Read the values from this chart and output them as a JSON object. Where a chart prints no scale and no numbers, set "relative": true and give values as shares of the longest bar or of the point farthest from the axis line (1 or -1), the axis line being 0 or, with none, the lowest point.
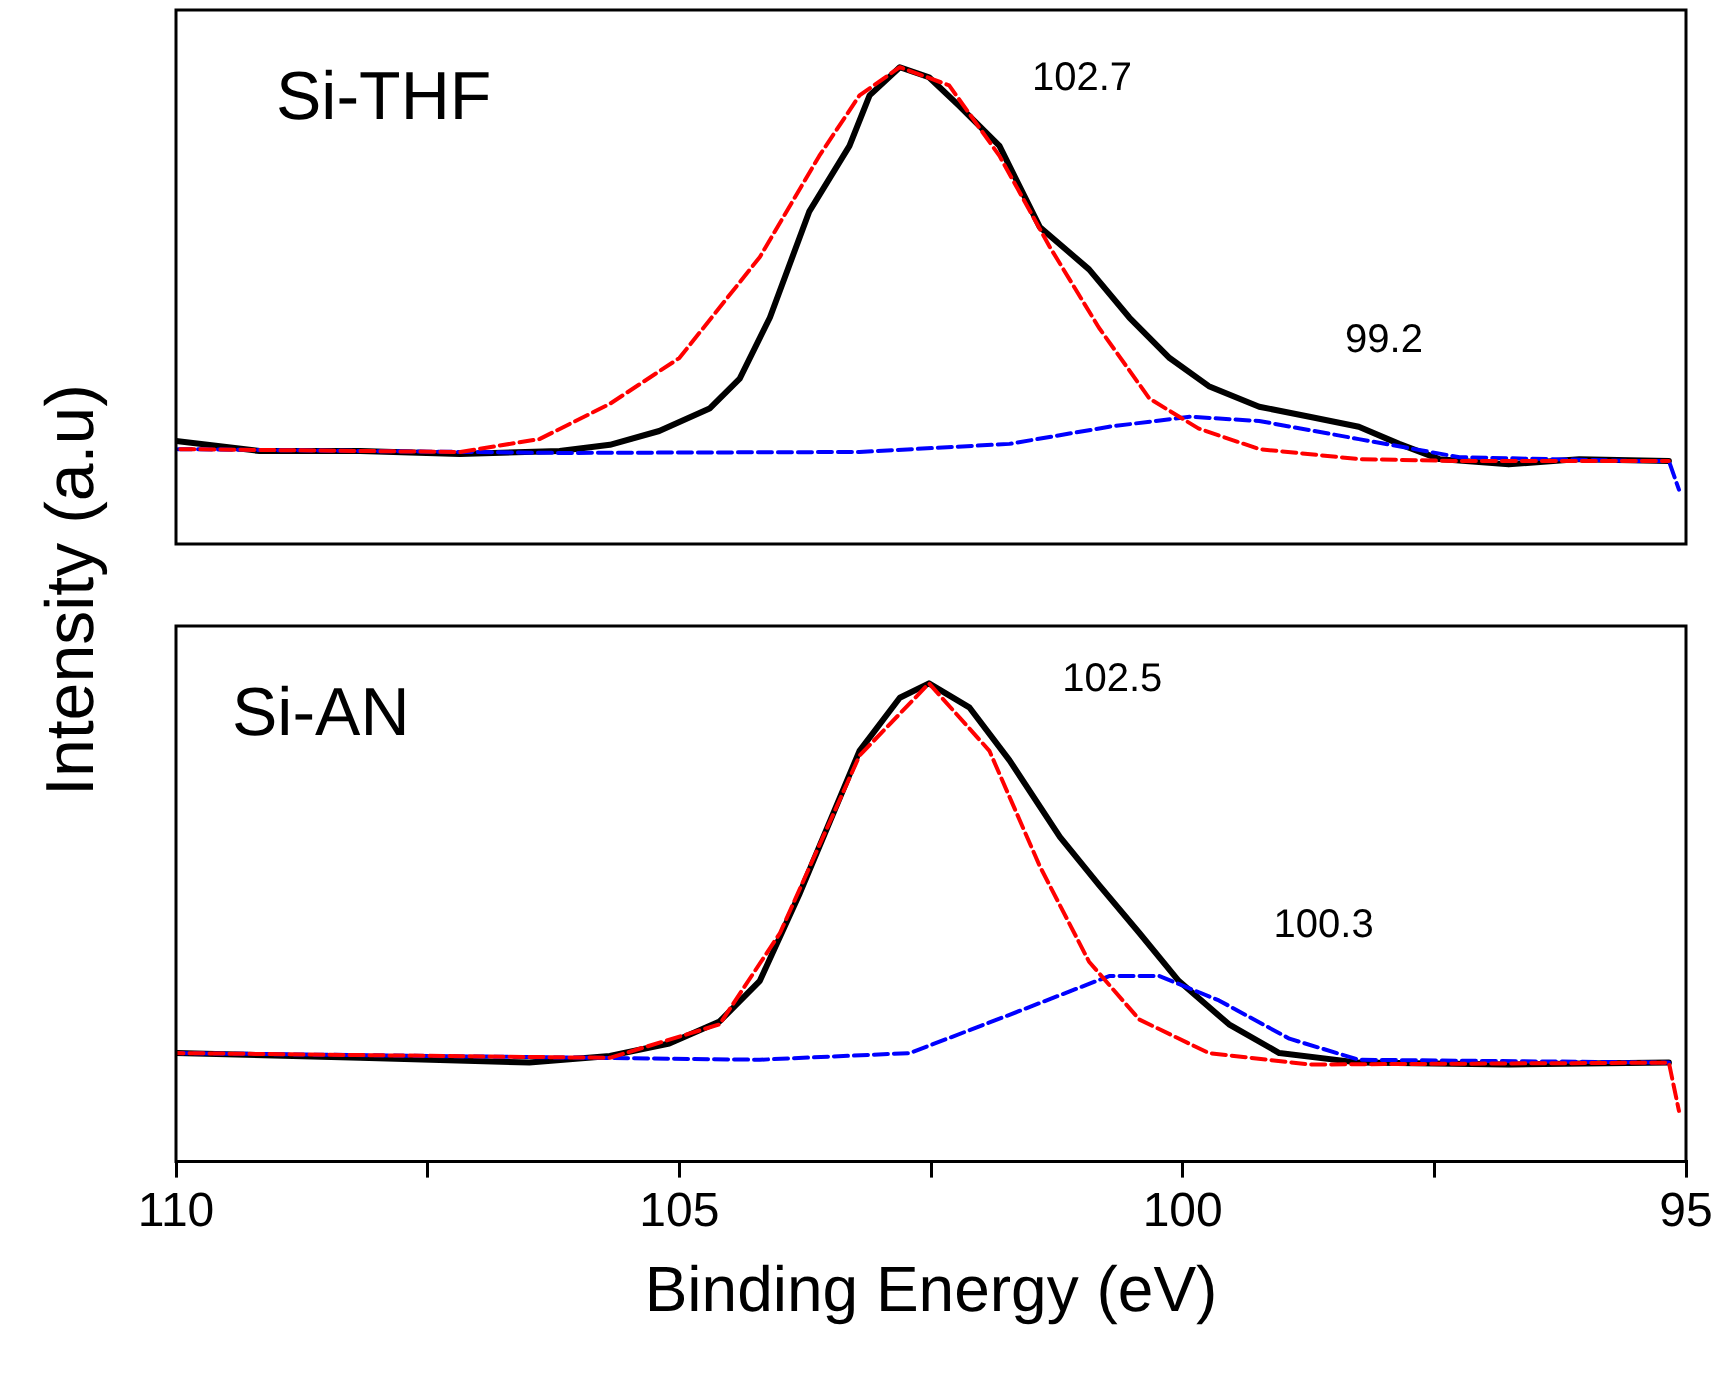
{
  "chart_data": [
    {
      "type": "line",
      "title": "Si-THF",
      "ylabel": "Intensity (a.u)",
      "relative": true,
      "xlim": [
        110,
        95
      ],
      "tick_labels": false,
      "grid": false,
      "legend": false,
      "marker": "none",
      "annotations": [
        "102.7",
        "99.2"
      ],
      "series": [
        {
          "color": "#000000",
          "line_style": "solid",
          "x": [
            110,
            109.17,
            108.17,
            107.18,
            106.19,
            105.69,
            105.2,
            104.7,
            104.4,
            104.1,
            103.71,
            103.31,
            103.11,
            102.81,
            102.52,
            102.22,
            101.82,
            101.42,
            100.93,
            100.53,
            100.13,
            99.74,
            99.24,
            98.74,
            98.25,
            97.85,
            97.45,
            96.76,
            96.06,
            95.17
          ],
          "values": [
            0.216,
            0.195,
            0.195,
            0.189,
            0.195,
            0.208,
            0.237,
            0.284,
            0.347,
            0.475,
            0.697,
            0.835,
            0.941,
            1.0,
            0.979,
            0.919,
            0.835,
            0.665,
            0.576,
            0.475,
            0.39,
            0.331,
            0.288,
            0.267,
            0.246,
            0.21,
            0.178,
            0.167,
            0.178,
            0.174
          ]
        },
        {
          "color": "#ff0000",
          "line_style": "dashed",
          "x": [
            110,
            107.18,
            106.39,
            105.69,
            105.0,
            104.2,
            103.61,
            103.21,
            102.81,
            102.32,
            101.82,
            101.32,
            100.83,
            100.33,
            99.84,
            99.24,
            98.25,
            97.25,
            95.17
          ],
          "values": [
            0.199,
            0.193,
            0.22,
            0.294,
            0.39,
            0.602,
            0.814,
            0.941,
            1.0,
            0.962,
            0.814,
            0.623,
            0.453,
            0.305,
            0.242,
            0.199,
            0.178,
            0.174,
            0.174
          ]
        },
        {
          "color": "#0000ff",
          "line_style": "dashed",
          "x": [
            110,
            106.19,
            103.21,
            101.72,
            100.73,
            99.93,
            99.24,
            98.25,
            97.25,
            95.47,
            95.17,
            95.07
          ],
          "values": [
            0.199,
            0.191,
            0.193,
            0.21,
            0.246,
            0.267,
            0.258,
            0.22,
            0.182,
            0.174,
            0.174,
            0.114
          ]
        }
      ]
    },
    {
      "type": "line",
      "title": "Si-AN",
      "xlabel": "Binding Energy (eV)",
      "relative": true,
      "xlim": [
        110,
        95
      ],
      "xticks": [
        110,
        {
          "value": 107.5,
          "label": null
        },
        105,
        {
          "value": 102.5,
          "label": null
        },
        100,
        {
          "value": 97.5,
          "label": null
        },
        95
      ],
      "tick_labels": "x",
      "grid": false,
      "legend": false,
      "marker": "none",
      "annotations": [
        "102.5",
        "100.3"
      ],
      "series": [
        {
          "color": "#000000",
          "line_style": "solid",
          "x": [
            110,
            108.17,
            106.49,
            105.69,
            105.1,
            104.6,
            104.2,
            103.81,
            103.21,
            102.81,
            102.52,
            102.12,
            101.72,
            101.22,
            100.83,
            100.43,
            100.04,
            99.54,
            99.04,
            98.25,
            96.76,
            95.17
          ],
          "values": [
            0.227,
            0.217,
            0.207,
            0.221,
            0.247,
            0.293,
            0.378,
            0.558,
            0.859,
            0.97,
            1.0,
            0.95,
            0.839,
            0.679,
            0.578,
            0.478,
            0.378,
            0.287,
            0.227,
            0.207,
            0.203,
            0.207
          ]
        },
        {
          "color": "#ff0000",
          "line_style": "dashed",
          "x": [
            110,
            105.69,
            104.6,
            104.0,
            103.21,
            102.52,
            101.92,
            101.42,
            100.93,
            100.43,
            99.74,
            98.74,
            95.17,
            95.07
          ],
          "values": [
            0.227,
            0.217,
            0.287,
            0.478,
            0.849,
            1.0,
            0.859,
            0.618,
            0.418,
            0.297,
            0.227,
            0.203,
            0.207,
            0.106
          ]
        },
        {
          "color": "#0000ff",
          "line_style": "dashed",
          "x": [
            110,
            104.2,
            102.71,
            101.72,
            100.73,
            100.23,
            99.64,
            98.94,
            98.25,
            95.17
          ],
          "values": [
            0.227,
            0.213,
            0.227,
            0.307,
            0.388,
            0.388,
            0.337,
            0.257,
            0.213,
            0.207
          ]
        }
      ]
    }
  ]
}
